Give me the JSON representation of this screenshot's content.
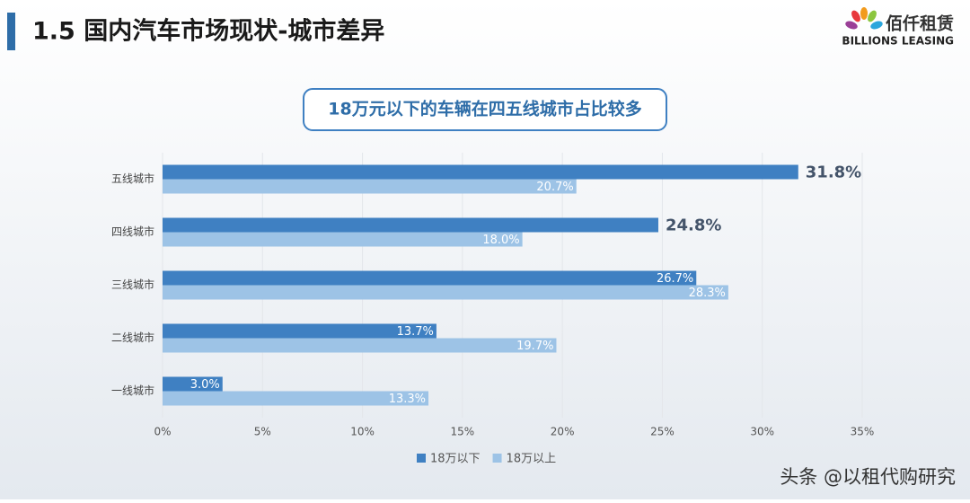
{
  "header": {
    "title": "1.5 国内汽车市场现状-城市差异",
    "logo_cn": "佰仟租赁",
    "logo_en": "BILLIONS LEASING"
  },
  "chart_data": {
    "type": "bar",
    "orientation": "horizontal",
    "title": "18万元以下的车辆在四五线城市占比较多",
    "categories": [
      "五线城市",
      "四线城市",
      "三线城市",
      "二线城市",
      "一线城市"
    ],
    "series": [
      {
        "name": "18万以下",
        "color": "#3f80c2",
        "values": [
          31.8,
          24.8,
          26.7,
          13.7,
          3.0
        ],
        "value_labels": [
          "31.8%",
          "24.8%",
          "26.7%",
          "13.7%",
          "3.0%"
        ]
      },
      {
        "name": "18万以上",
        "color": "#9dc3e6",
        "values": [
          20.7,
          18.0,
          28.3,
          19.7,
          13.3
        ],
        "value_labels": [
          "20.7%",
          "18.0%",
          "28.3%",
          "19.7%",
          "13.3%"
        ]
      }
    ],
    "xlim": [
      0,
      35
    ],
    "xticks": [
      {
        "value": 0,
        "label": "0%"
      },
      {
        "value": 5,
        "label": "5%"
      },
      {
        "value": 10,
        "label": "10%"
      },
      {
        "value": 15,
        "label": "15%"
      },
      {
        "value": 20,
        "label": "20%"
      },
      {
        "value": 25,
        "label": "25%"
      },
      {
        "value": 30,
        "label": "30%"
      },
      {
        "value": 35,
        "label": "35%"
      }
    ],
    "grid": true,
    "legend": "bottom"
  },
  "watermark": "头条 @以租代购研究"
}
